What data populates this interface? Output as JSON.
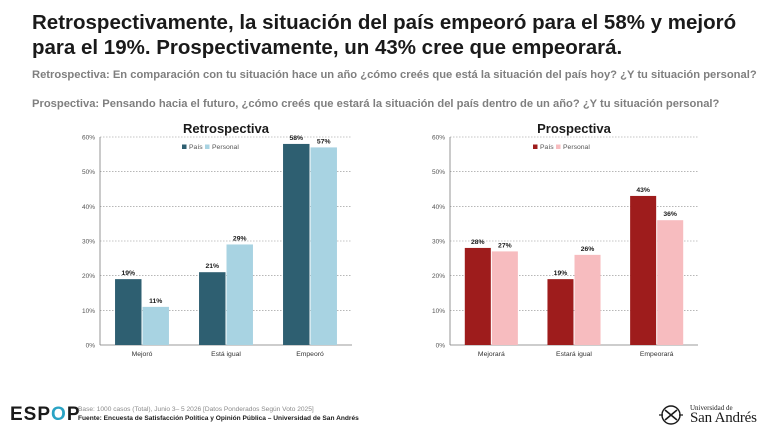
{
  "header": {
    "title": "Retrospectivamente, la situación del país empeoró para el 58% y mejoró para el 19%. Prospectivamente, un 43% cree que empeorará.",
    "subtitle_retro": "Retrospectiva: En comparación con tu situación hace un año ¿cómo creés que está la situación del país hoy? ¿Y tu situación personal?",
    "subtitle_prosp": "Prospectiva: Pensando hacia el futuro, ¿cómo creés que estará la situación del país dentro de un año? ¿Y tu situación personal?"
  },
  "chart_data": [
    {
      "type": "bar",
      "title": "Retrospectiva",
      "categories": [
        "Mejoró",
        "Está igual",
        "Empeoró"
      ],
      "series": [
        {
          "name": "País",
          "values": [
            19,
            21,
            58
          ],
          "labels": [
            "19%",
            "21%",
            "58%"
          ],
          "color": "#2e5f71"
        },
        {
          "name": "Personal",
          "values": [
            11,
            29,
            57
          ],
          "labels": [
            "11%",
            "29%",
            "57%"
          ],
          "color": "#a8d3e2"
        }
      ],
      "ylim": [
        0,
        60
      ],
      "yticks": [
        "0%",
        "10%",
        "20%",
        "30%",
        "40%",
        "50%",
        "60%"
      ],
      "grid": true,
      "legend": "top-right"
    },
    {
      "type": "bar",
      "title": "Prospectiva",
      "categories": [
        "Mejorará",
        "Estará igual",
        "Empeorará"
      ],
      "series": [
        {
          "name": "País",
          "values": [
            28,
            19,
            43
          ],
          "labels": [
            "28%",
            "19%",
            "43%"
          ],
          "color": "#9e1c1c"
        },
        {
          "name": "Personal",
          "values": [
            27,
            26,
            36
          ],
          "labels": [
            "27%",
            "26%",
            "36%"
          ],
          "color": "#f7bcbf"
        }
      ],
      "ylim": [
        0,
        60
      ],
      "yticks": [
        "0%",
        "10%",
        "20%",
        "30%",
        "40%",
        "50%",
        "60%"
      ],
      "grid": true,
      "legend": "top-right"
    }
  ],
  "footer": {
    "brand_a": "ESP",
    "brand_o": "O",
    "brand_b": "P",
    "base": "Base: 1000 casos (Total), Junio 3– 5 2026 [Datos Ponderados Según Voto 2025]",
    "source": "Fuente: Encuesta de Satisfacción Política y Opinión Pública – Universidad de San Andrés",
    "logo_small": "Universidad de",
    "logo_name": "San Andrés"
  }
}
